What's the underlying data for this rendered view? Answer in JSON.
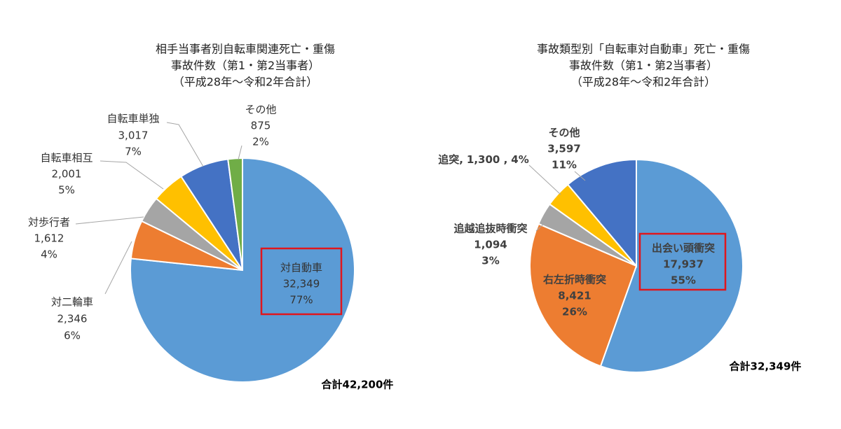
{
  "chart_data": [
    {
      "type": "pie",
      "title": [
        "相手当事者別自転車関連死亡・重傷",
        "事故件数（第1・第2当事者）",
        "（平成28年～令和2年合計）"
      ],
      "categories": [
        "対自動車",
        "対二輪車",
        "対歩行者",
        "自転車相互",
        "自転車単独",
        "その他"
      ],
      "values": [
        32349,
        2346,
        1612,
        2001,
        3017,
        875
      ],
      "value_labels": [
        "32,349",
        "2,346",
        "1,612",
        "2,001",
        "3,017",
        "875"
      ],
      "percent_labels": [
        "77%",
        "6%",
        "4%",
        "5%",
        "7%",
        "2%"
      ],
      "colors": [
        "#5b9bd5",
        "#ed7d31",
        "#a5a5a5",
        "#ffc000",
        "#4472c4",
        "#70ad47"
      ],
      "total_label": "合計42,200件"
    },
    {
      "type": "pie",
      "title": [
        "事故類型別「自転車対自動車」死亡・重傷",
        "事故件数（第1・第2当事者）",
        "（平成28年～令和2年合計）"
      ],
      "categories": [
        "出会い頭衝突",
        "右左折時衝突",
        "追越追抜時衝突",
        "追突,",
        "その他"
      ],
      "values": [
        17937,
        8421,
        1094,
        1300,
        3597
      ],
      "value_labels": [
        "17,937",
        "8,421",
        "1,094",
        "1,300 ,",
        "3,597"
      ],
      "percent_labels": [
        "55%",
        "26%",
        "3%",
        "4%",
        "11%"
      ],
      "colors": [
        "#5b9bd5",
        "#ed7d31",
        "#a5a5a5",
        "#ffc000",
        "#4472c4"
      ],
      "total_label": "合計32,349件"
    }
  ]
}
